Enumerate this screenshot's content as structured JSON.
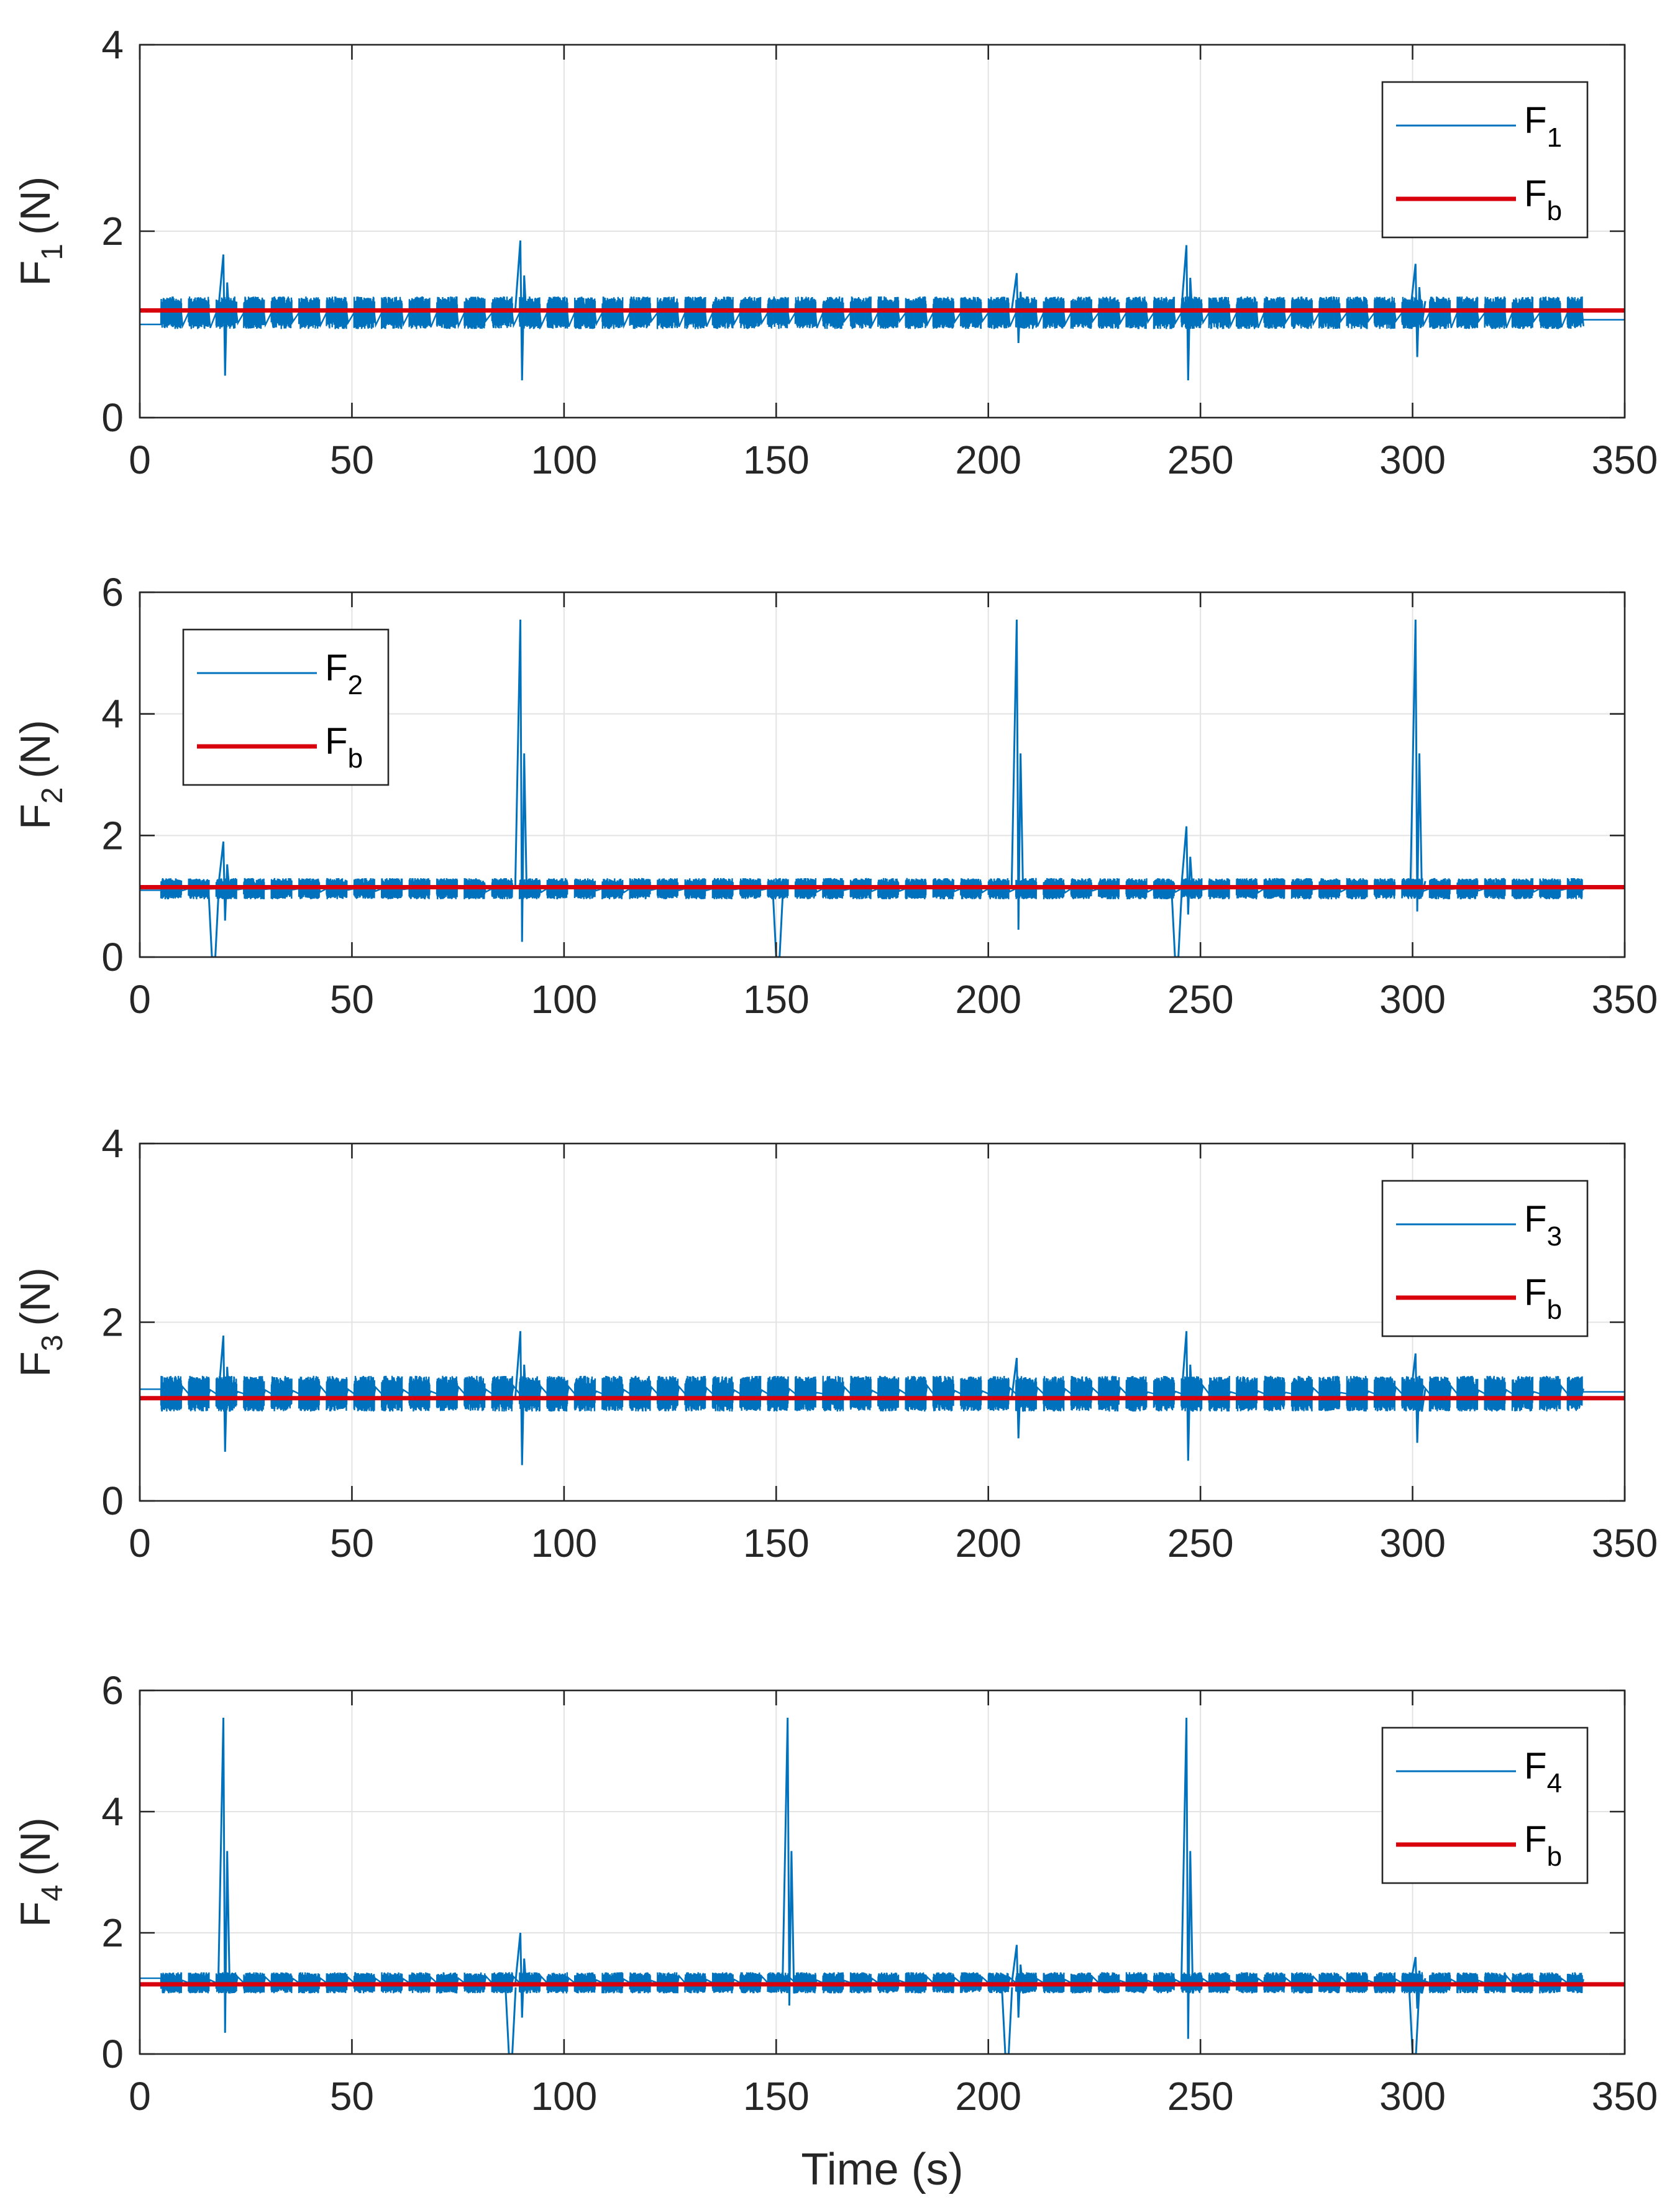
{
  "chart_data": [
    {
      "type": "line",
      "id": "F1",
      "ylabel": {
        "main": "F",
        "sub": "1",
        "unit": "(N)"
      },
      "xlim": [
        0,
        350
      ],
      "ylim": [
        0,
        4
      ],
      "xticks": [
        0,
        50,
        100,
        150,
        200,
        250,
        300,
        350
      ],
      "yticks": [
        0,
        2,
        4
      ],
      "grid": true,
      "legend_position": "top-right",
      "series": [
        {
          "name": "F1",
          "legend_main": "F",
          "legend_sub": "1",
          "color": "#0072BD",
          "kind": "oscillation",
          "band": [
            0.95,
            1.3
          ],
          "gap_level": 1.0,
          "end_value": 1.05,
          "transients": [
            [
              20,
              1.75,
              0.45
            ],
            [
              90,
              1.9,
              0.4
            ],
            [
              207,
              1.55,
              0.8
            ],
            [
              247,
              1.85,
              0.4
            ],
            [
              301,
              1.65,
              0.65
            ]
          ],
          "dips": []
        },
        {
          "name": "Fb",
          "legend_main": "F",
          "legend_sub": "b",
          "color": "#D9000D",
          "kind": "constant",
          "value": 1.15
        }
      ]
    },
    {
      "type": "line",
      "id": "F2",
      "ylabel": {
        "main": "F",
        "sub": "2",
        "unit": "(N)"
      },
      "xlim": [
        0,
        350
      ],
      "ylim": [
        0,
        6
      ],
      "xticks": [
        0,
        50,
        100,
        150,
        200,
        250,
        300,
        350
      ],
      "yticks": [
        0,
        2,
        4,
        6
      ],
      "grid": true,
      "legend_position": "top-left",
      "series": [
        {
          "name": "F2",
          "legend_main": "F",
          "legend_sub": "2",
          "color": "#0072BD",
          "kind": "oscillation",
          "band": [
            0.95,
            1.3
          ],
          "gap_level": 1.1,
          "end_value": 1.15,
          "transients": [
            [
              20,
              1.9,
              0.6
            ],
            [
              90,
              5.55,
              0.25
            ],
            [
              207,
              5.55,
              0.45
            ],
            [
              247,
              2.15,
              0.7
            ],
            [
              301,
              5.55,
              0.75
            ]
          ],
          "dips": [
            [
              17,
              0.0
            ],
            [
              150,
              0.0
            ],
            [
              244,
              0.0
            ]
          ]
        },
        {
          "name": "Fb",
          "legend_main": "F",
          "legend_sub": "b",
          "color": "#D9000D",
          "kind": "constant",
          "value": 1.15
        }
      ]
    },
    {
      "type": "line",
      "id": "F3",
      "ylabel": {
        "main": "F",
        "sub": "3",
        "unit": "(N)"
      },
      "xlim": [
        0,
        350
      ],
      "ylim": [
        0,
        4
      ],
      "xticks": [
        0,
        50,
        100,
        150,
        200,
        250,
        300,
        350
      ],
      "yticks": [
        0,
        2,
        4
      ],
      "grid": true,
      "legend_position": "top-right",
      "series": [
        {
          "name": "F3",
          "legend_main": "F",
          "legend_sub": "3",
          "color": "#0072BD",
          "kind": "oscillation",
          "band": [
            1.0,
            1.4
          ],
          "gap_level": 1.25,
          "end_value": 1.22,
          "transients": [
            [
              20,
              1.85,
              0.55
            ],
            [
              90,
              1.9,
              0.4
            ],
            [
              207,
              1.6,
              0.7
            ],
            [
              247,
              1.9,
              0.45
            ],
            [
              301,
              1.65,
              0.65
            ]
          ],
          "dips": []
        },
        {
          "name": "Fb",
          "legend_main": "F",
          "legend_sub": "b",
          "color": "#D9000D",
          "kind": "constant",
          "value": 1.15
        }
      ]
    },
    {
      "type": "line",
      "id": "F4",
      "ylabel": {
        "main": "F",
        "sub": "4",
        "unit": "(N)"
      },
      "xlim": [
        0,
        350
      ],
      "ylim": [
        0,
        6
      ],
      "xticks": [
        0,
        50,
        100,
        150,
        200,
        250,
        300,
        350
      ],
      "yticks": [
        0,
        2,
        4,
        6
      ],
      "grid": true,
      "legend_position": "top-right",
      "xlabel": "Time (s)",
      "series": [
        {
          "name": "F4",
          "legend_main": "F",
          "legend_sub": "4",
          "color": "#0072BD",
          "kind": "oscillation",
          "band": [
            1.0,
            1.35
          ],
          "gap_level": 1.25,
          "end_value": 1.15,
          "transients": [
            [
              20,
              5.55,
              0.35
            ],
            [
              90,
              2.0,
              0.6
            ],
            [
              153,
              5.55,
              0.8
            ],
            [
              207,
              1.8,
              0.6
            ],
            [
              247,
              5.55,
              0.25
            ],
            [
              301,
              1.6,
              0.75
            ]
          ],
          "dips": [
            [
              87,
              0.0
            ],
            [
              204,
              0.0
            ],
            [
              300,
              0.0
            ]
          ]
        },
        {
          "name": "Fb",
          "legend_main": "F",
          "legend_sub": "b",
          "color": "#D9000D",
          "kind": "constant",
          "value": 1.15
        }
      ]
    }
  ]
}
